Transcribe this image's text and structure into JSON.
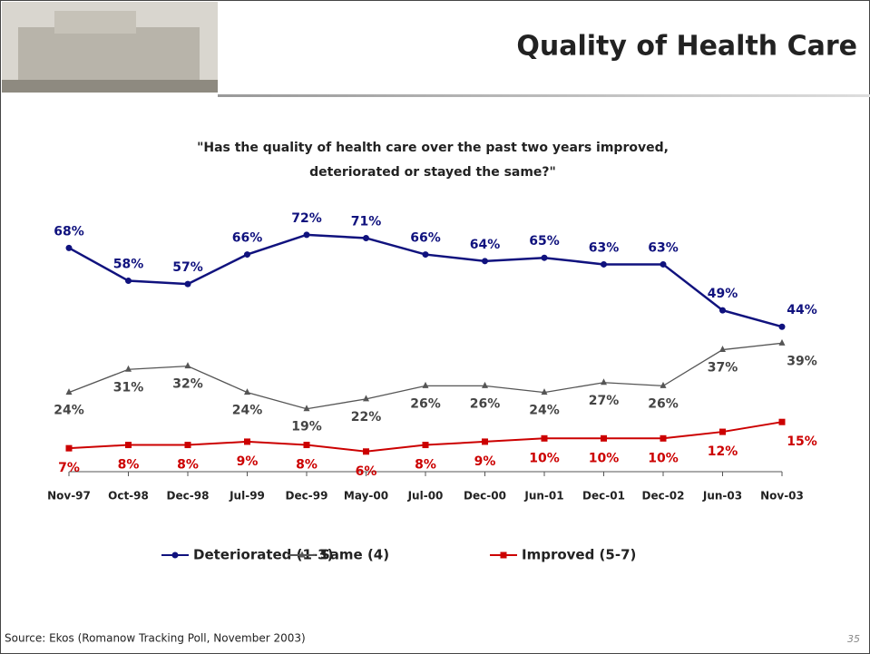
{
  "header": {
    "title": "Quality of Health Care"
  },
  "chart_data": {
    "type": "line",
    "subtitle": [
      "\"Has the quality of health care over the past two years improved,",
      "deteriorated or stayed the same?\""
    ],
    "categories": [
      "Nov-97",
      "Oct-98",
      "Dec-98",
      "Jul-99",
      "Dec-99",
      "May-00",
      "Jul-00",
      "Dec-00",
      "Jun-01",
      "Dec-01",
      "Dec-02",
      "Jun-03",
      "Nov-03"
    ],
    "series": [
      {
        "name": "Deteriorated (1-3)",
        "color": "#10127e",
        "marker": "circle",
        "values": [
          68,
          58,
          57,
          66,
          72,
          71,
          66,
          64,
          65,
          63,
          63,
          49,
          44
        ],
        "value_labels": [
          "68%",
          "58%",
          "57%",
          "66%",
          "72%",
          "71%",
          "66%",
          "64%",
          "65%",
          "63%",
          "63%",
          "49%",
          "44%"
        ]
      },
      {
        "name": "Same (4)",
        "color": "#555555",
        "marker": "triangle",
        "values": [
          24,
          31,
          32,
          24,
          19,
          22,
          26,
          26,
          24,
          27,
          26,
          37,
          39
        ],
        "value_labels": [
          "24%",
          "31%",
          "32%",
          "24%",
          "19%",
          "22%",
          "26%",
          "26%",
          "24%",
          "27%",
          "26%",
          "37%",
          "39%"
        ]
      },
      {
        "name": "Improved (5-7)",
        "color": "#cc0000",
        "marker": "square",
        "values": [
          7,
          8,
          8,
          9,
          8,
          6,
          8,
          9,
          10,
          10,
          10,
          12,
          15
        ],
        "value_labels": [
          "7%",
          "8%",
          "8%",
          "9%",
          "8%",
          "6%",
          "8%",
          "9%",
          "10%",
          "10%",
          "10%",
          "12%",
          "15%"
        ]
      }
    ]
  },
  "footer": {
    "source": "Source: Ekos (Romanow Tracking Poll, November 2003)",
    "page": "35"
  }
}
